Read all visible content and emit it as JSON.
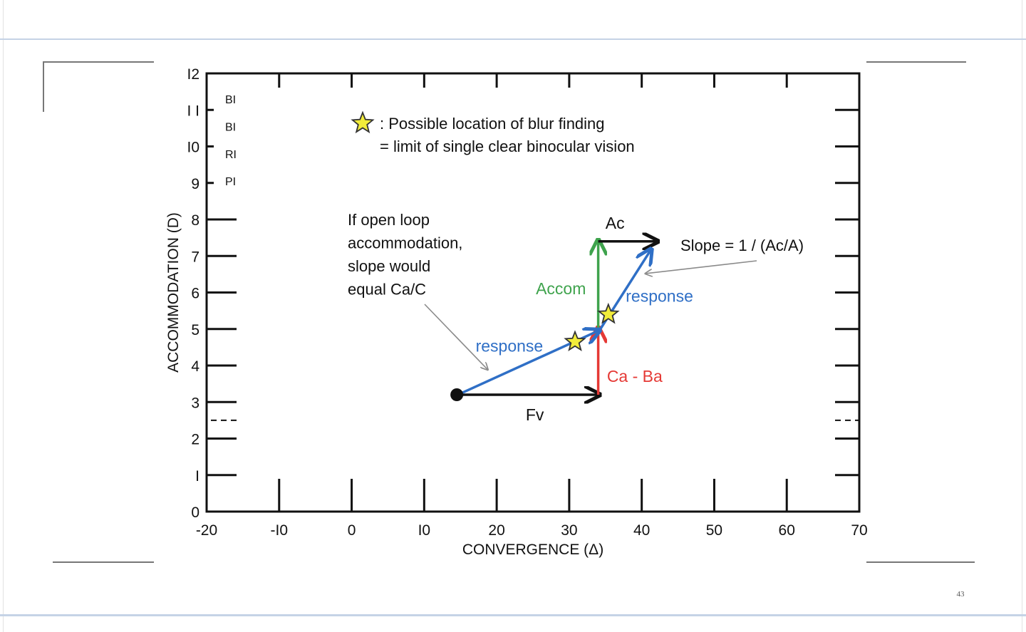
{
  "page_number": "43",
  "colors": {
    "axis": "#111111",
    "black_arrow": "#111111",
    "green": "#3fa34d",
    "red": "#e53935",
    "blue": "#2f6fc6",
    "star_fill": "#f2ec3a",
    "star_stroke": "#333333",
    "grey_arrow": "#8a8a8a"
  },
  "chart_data": {
    "type": "line",
    "xlabel": "CONVERGENCE (Δ)",
    "ylabel": "ACCOMMODATION (D)",
    "xlim": [
      -20,
      70
    ],
    "ylim": [
      0,
      12
    ],
    "x_ticks": [
      -20,
      -10,
      0,
      10,
      20,
      30,
      40,
      50,
      60,
      70
    ],
    "x_tick_labels": [
      "-20",
      "-I0",
      "0",
      "I0",
      "20",
      "30",
      "40",
      "50",
      "60",
      "70"
    ],
    "y_ticks": [
      0,
      1,
      2,
      3,
      4,
      5,
      6,
      7,
      8,
      9,
      10,
      11,
      12
    ],
    "y_tick_labels": [
      "0",
      "I",
      "2",
      "3",
      "4",
      "5",
      "6",
      "7",
      "8",
      "9",
      "I0",
      "I I",
      "I2"
    ],
    "side_labels": [
      "BI",
      "BI",
      "RI",
      "PI"
    ],
    "legend": {
      "line1": ": Possible location of blur finding",
      "line2": "= limit of single clear binocular vision"
    },
    "start_point": {
      "x": 14.5,
      "y": 3.2
    },
    "arrows": [
      {
        "name": "Fv",
        "color": "black",
        "from": [
          14.5,
          3.2
        ],
        "to": [
          34,
          3.2
        ],
        "label": "Fv",
        "label_pos": [
          24,
          2.5
        ]
      },
      {
        "name": "Ca - Ba",
        "color": "red",
        "from": [
          34,
          3.2
        ],
        "to": [
          34,
          5.0
        ],
        "label": "Ca - Ba",
        "label_pos": [
          35.2,
          3.55
        ]
      },
      {
        "name": "Accom",
        "color": "green",
        "from": [
          34,
          5.0
        ],
        "to": [
          34,
          7.4
        ],
        "label": "Accom",
        "label_pos": [
          25.4,
          5.95
        ]
      },
      {
        "name": "Ac",
        "color": "black",
        "from": [
          34,
          7.4
        ],
        "to": [
          42,
          7.4
        ],
        "label": "Ac",
        "label_pos": [
          35,
          7.75
        ]
      },
      {
        "name": "response-1",
        "color": "blue",
        "from": [
          15.2,
          3.25
        ],
        "to": [
          34,
          4.95
        ],
        "label": "response",
        "label_pos": [
          17.1,
          4.38
        ]
      },
      {
        "name": "response-2",
        "color": "blue",
        "from": [
          34.3,
          5.0
        ],
        "to": [
          41.2,
          7.15
        ],
        "label": "response",
        "label_pos": [
          37.8,
          5.75
        ]
      }
    ],
    "stars": [
      {
        "x": 30.8,
        "y": 4.65
      },
      {
        "x": 35.4,
        "y": 5.4
      }
    ],
    "annotations": [
      {
        "name": "open-loop-note",
        "lines": [
          "If open loop",
          "accommodation,",
          "slope would",
          "equal Ca/C"
        ],
        "arrow_to": [
          18.7,
          3.9
        ]
      },
      {
        "name": "slope-note",
        "text": "Slope = 1 / (Ac/A)",
        "arrow_to": [
          40.6,
          6.52
        ]
      }
    ]
  }
}
